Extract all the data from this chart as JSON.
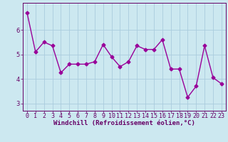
{
  "xlabel": "Windchill (Refroidissement éolien,°C)",
  "x": [
    0,
    1,
    2,
    3,
    4,
    5,
    6,
    7,
    8,
    9,
    10,
    11,
    12,
    13,
    14,
    15,
    16,
    17,
    18,
    19,
    20,
    21,
    22,
    23
  ],
  "y": [
    6.7,
    5.1,
    5.5,
    5.35,
    4.25,
    4.6,
    4.6,
    4.6,
    4.7,
    5.4,
    4.9,
    4.5,
    4.7,
    5.35,
    5.2,
    5.2,
    5.6,
    4.4,
    4.4,
    3.25,
    3.7,
    5.35,
    4.05,
    3.8
  ],
  "line_color": "#990099",
  "marker": "D",
  "marker_size": 2.5,
  "bg_color": "#cce8f0",
  "grid_color": "#aaccdd",
  "axis_color": "#660066",
  "tick_color": "#660066",
  "label_color": "#660066",
  "ylim": [
    2.7,
    7.1
  ],
  "yticks": [
    3,
    4,
    5,
    6
  ],
  "xlim": [
    -0.5,
    23.5
  ],
  "xticks": [
    0,
    1,
    2,
    3,
    4,
    5,
    6,
    7,
    8,
    9,
    10,
    11,
    12,
    13,
    14,
    15,
    16,
    17,
    18,
    19,
    20,
    21,
    22,
    23
  ],
  "xlabel_fontsize": 6.5,
  "tick_fontsize": 6,
  "linewidth": 1.0
}
